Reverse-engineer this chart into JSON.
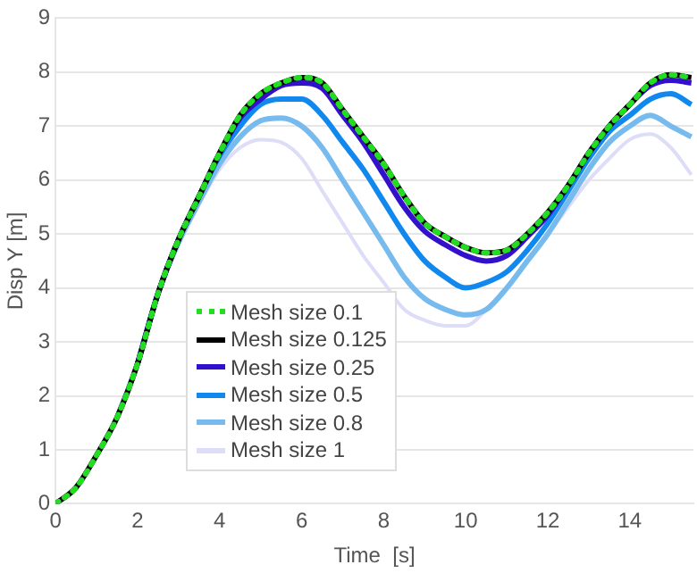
{
  "chart_data": {
    "type": "line",
    "xlabel": "Time  [s]",
    "ylabel": "Disp Y [m]",
    "x": [
      0,
      0.5,
      1,
      1.5,
      2,
      2.5,
      3,
      3.5,
      4,
      4.5,
      5,
      5.5,
      6,
      6.5,
      7,
      7.5,
      8,
      8.5,
      9,
      9.5,
      10,
      10.5,
      11,
      11.5,
      12,
      12.5,
      13,
      13.5,
      14,
      14.5,
      15,
      15.5
    ],
    "xlim": [
      0,
      15.55
    ],
    "xticks": [
      0,
      2,
      4,
      6,
      8,
      10,
      12,
      14
    ],
    "ylim": [
      0,
      9
    ],
    "yticks": [
      0,
      1,
      2,
      3,
      4,
      5,
      6,
      7,
      8,
      9
    ],
    "grid": "y",
    "legend": "bottom left",
    "marker": "none",
    "series": [
      {
        "name": "Mesh size 0.1",
        "color": "#22dd22",
        "line_style": "dotted",
        "values": [
          0,
          0.3,
          0.9,
          1.6,
          2.6,
          3.9,
          4.9,
          5.7,
          6.5,
          7.2,
          7.6,
          7.8,
          7.9,
          7.8,
          7.3,
          6.8,
          6.3,
          5.7,
          5.2,
          4.95,
          4.75,
          4.65,
          4.7,
          5.0,
          5.4,
          5.9,
          6.5,
          7.0,
          7.4,
          7.8,
          7.95,
          7.9
        ]
      },
      {
        "name": "Mesh size 0.125",
        "color": "#000000",
        "line_style": "solid",
        "values": [
          0,
          0.3,
          0.9,
          1.6,
          2.6,
          3.9,
          4.9,
          5.7,
          6.5,
          7.2,
          7.6,
          7.8,
          7.9,
          7.8,
          7.3,
          6.8,
          6.3,
          5.7,
          5.2,
          4.95,
          4.75,
          4.65,
          4.7,
          5.0,
          5.4,
          5.9,
          6.5,
          7.0,
          7.4,
          7.8,
          7.95,
          7.9
        ]
      },
      {
        "name": "Mesh size 0.25",
        "color": "#3311cc",
        "line_style": "solid",
        "values": [
          null,
          null,
          null,
          null,
          2.6,
          3.9,
          4.9,
          5.7,
          6.5,
          7.15,
          7.5,
          7.75,
          7.8,
          7.7,
          7.2,
          6.7,
          6.1,
          5.5,
          5.05,
          4.8,
          4.6,
          4.5,
          4.6,
          4.95,
          5.35,
          5.9,
          6.5,
          7.0,
          7.4,
          7.75,
          7.85,
          7.8
        ]
      },
      {
        "name": "Mesh size 0.5",
        "color": "#1188ee",
        "line_style": "solid",
        "values": [
          null,
          null,
          null,
          null,
          2.6,
          3.9,
          4.9,
          5.7,
          6.45,
          7.0,
          7.4,
          7.5,
          7.5,
          7.2,
          6.7,
          6.2,
          5.6,
          5.0,
          4.5,
          4.2,
          4.0,
          4.1,
          4.3,
          4.7,
          5.2,
          5.8,
          6.4,
          6.9,
          7.2,
          7.5,
          7.6,
          7.4
        ]
      },
      {
        "name": "Mesh size 0.8",
        "color": "#77bbee",
        "line_style": "solid",
        "values": [
          null,
          null,
          null,
          1.6,
          2.6,
          3.9,
          4.85,
          5.6,
          6.3,
          6.8,
          7.1,
          7.15,
          7.0,
          6.6,
          6.0,
          5.4,
          4.8,
          4.2,
          3.8,
          3.6,
          3.5,
          3.6,
          4.0,
          4.5,
          5.0,
          5.6,
          6.2,
          6.7,
          7.0,
          7.2,
          7.0,
          6.8
        ]
      },
      {
        "name": "Mesh size 1",
        "color": "#ddddf8",
        "line_style": "solid",
        "values": [
          null,
          null,
          null,
          1.6,
          2.6,
          3.9,
          4.8,
          5.55,
          6.2,
          6.6,
          6.75,
          6.7,
          6.4,
          5.8,
          5.2,
          4.6,
          4.1,
          3.6,
          3.4,
          3.3,
          3.3,
          3.6,
          4.0,
          4.5,
          5.0,
          5.5,
          6.0,
          6.4,
          6.75,
          6.85,
          6.6,
          6.1
        ]
      }
    ]
  }
}
